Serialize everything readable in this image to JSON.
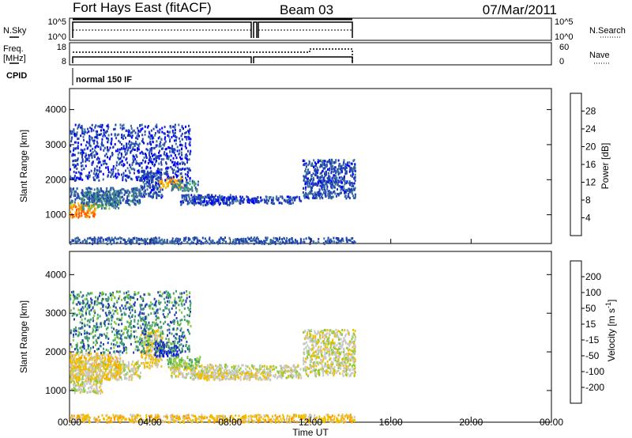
{
  "header": {
    "station": "Fort Hays East (fitACF)",
    "beam": "Beam 03",
    "date": "07/Mar/2011"
  },
  "strip_labels": {
    "nsky": "N.Sky",
    "nsearch": "N.Search",
    "freq_top": "Freq.",
    "freq_unit": "[MHz]",
    "nave": "Nave",
    "cpid": "CPID",
    "cpid_value": "normal 150 IF"
  },
  "strip_ticks": {
    "noise_left": [
      "10^5",
      "10^0"
    ],
    "noise_right": [
      "10^5",
      "10^0"
    ],
    "freq_left": [
      "18",
      "8"
    ],
    "nave_right": [
      "60",
      "0"
    ]
  },
  "x_axis": {
    "label": "Time UT",
    "ticks": [
      "00:00",
      "04:00",
      "08:00",
      "12:00",
      "16:00",
      "20:00",
      "00:00"
    ],
    "range_hours": [
      0,
      24
    ]
  },
  "colors": {
    "power": [
      "#0000ff",
      "#1e3fb2",
      "#3a6f9e",
      "#3f9f6f",
      "#88cc33",
      "#f0c000",
      "#ff9900",
      "#ff5500",
      "#ff0000"
    ],
    "velocity": [
      "#ff0000",
      "#ff5500",
      "#ff9900",
      "#f0c000",
      "#c8c8c8",
      "#88cc33",
      "#3f9f6f",
      "#1e3fb2",
      "#0000ff"
    ]
  },
  "chart_data": [
    {
      "type": "heatmap",
      "panel": "power",
      "ylabel": "Slant Range [km]",
      "ylim": [
        180,
        4600
      ],
      "yticks": [
        1000,
        2000,
        3000,
        4000
      ],
      "xlim": [
        0,
        24
      ],
      "colorbar": {
        "label": "Power [dB]",
        "ticks": [
          "28",
          "24",
          "20",
          "16",
          "12",
          "8",
          "4"
        ],
        "range": [
          0,
          32
        ]
      },
      "regions": [
        {
          "t": [
            0.0,
            1.3
          ],
          "r": [
            950,
            1350
          ],
          "v": 24
        },
        {
          "t": [
            0.6,
            2.5
          ],
          "r": [
            1200,
            1700
          ],
          "v": 12
        },
        {
          "t": [
            0.0,
            1.6
          ],
          "r": [
            1350,
            1800
          ],
          "v": 8
        },
        {
          "t": [
            1.6,
            3.5
          ],
          "r": [
            1300,
            1800
          ],
          "v": 8
        },
        {
          "t": [
            3.5,
            4.6
          ],
          "r": [
            1500,
            2300
          ],
          "v": 6
        },
        {
          "t": [
            4.4,
            5.6
          ],
          "r": [
            1800,
            2100
          ],
          "v": 22
        },
        {
          "t": [
            5.0,
            6.4
          ],
          "r": [
            1700,
            2000
          ],
          "v": 10
        },
        {
          "t": [
            5.5,
            8.0
          ],
          "r": [
            1300,
            1600
          ],
          "v": 6
        },
        {
          "t": [
            6.0,
            11.5
          ],
          "r": [
            1350,
            1550
          ],
          "v": 5
        },
        {
          "t": [
            11.6,
            14.2
          ],
          "r": [
            1500,
            2600
          ],
          "v": 6
        },
        {
          "t": [
            0.0,
            14.2
          ],
          "r": [
            200,
            380
          ],
          "v": 7
        },
        {
          "t": [
            0.0,
            6.0
          ],
          "r": [
            2000,
            3600
          ],
          "v": 5
        }
      ]
    },
    {
      "type": "heatmap",
      "panel": "velocity",
      "ylabel": "Slant Range [km]",
      "ylim": [
        180,
        4600
      ],
      "yticks": [
        1000,
        2000,
        3000,
        4000
      ],
      "xlim": [
        0,
        24
      ],
      "colorbar": {
        "label": "Velocity [m s^-1]",
        "ticks": [
          "200",
          "100",
          "50",
          "15",
          "-15",
          "-50",
          "-100",
          "-200"
        ],
        "range": [
          -250,
          250
        ]
      },
      "regions": [
        {
          "t": [
            0.0,
            1.6
          ],
          "r": [
            950,
            1800
          ],
          "v": 0
        },
        {
          "t": [
            1.6,
            3.5
          ],
          "r": [
            1300,
            1800
          ],
          "v": 0
        },
        {
          "t": [
            0.0,
            2.5
          ],
          "r": [
            1300,
            2000
          ],
          "v": -40
        },
        {
          "t": [
            3.5,
            4.6
          ],
          "r": [
            1600,
            2600
          ],
          "v": -30
        },
        {
          "t": [
            4.2,
            5.4
          ],
          "r": [
            1900,
            2300
          ],
          "v": 180
        },
        {
          "t": [
            4.8,
            6.5
          ],
          "r": [
            1600,
            1900
          ],
          "v": 60
        },
        {
          "t": [
            5.0,
            11.5
          ],
          "r": [
            1350,
            1700
          ],
          "v": 0
        },
        {
          "t": [
            6.0,
            10.0
          ],
          "r": [
            1300,
            1500
          ],
          "v": -30
        },
        {
          "t": [
            11.6,
            14.2
          ],
          "r": [
            1400,
            2600
          ],
          "v": 0
        },
        {
          "t": [
            0.0,
            14.2
          ],
          "r": [
            200,
            400
          ],
          "v": -60
        },
        {
          "t": [
            0.0,
            6.0
          ],
          "r": [
            2000,
            3600
          ],
          "v": 120
        }
      ]
    }
  ]
}
